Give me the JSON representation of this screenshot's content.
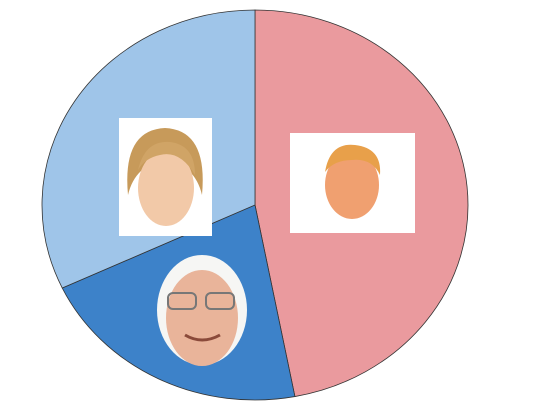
{
  "chart_data": {
    "type": "pie",
    "values": [
      47,
      21,
      32
    ],
    "colors": [
      "#ea9a9e",
      "#3d82c9",
      "#9fc5e9"
    ]
  }
}
